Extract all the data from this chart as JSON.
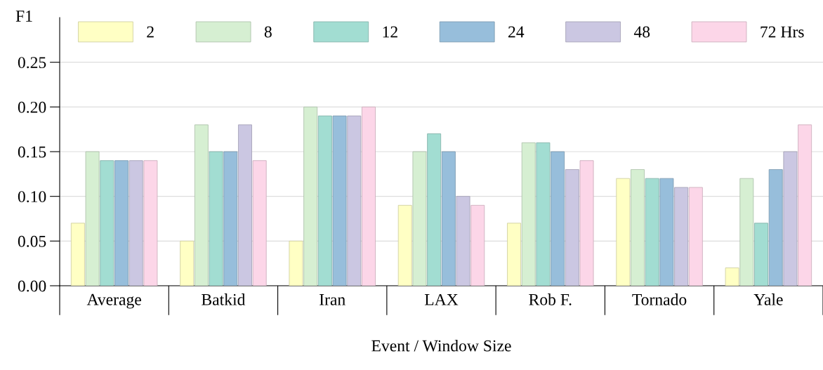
{
  "chart_data": {
    "type": "bar",
    "xlabel": "Event / Window Size",
    "ylabel": "F1",
    "categories": [
      "Average",
      "Batkid",
      "Iran",
      "LAX",
      "Rob F.",
      "Tornado",
      "Yale"
    ],
    "series": [
      {
        "name": "2",
        "color": "#ffffc4",
        "values": [
          0.07,
          0.05,
          0.05,
          0.09,
          0.07,
          0.12,
          0.02
        ]
      },
      {
        "name": "8",
        "color": "#d6efd2",
        "values": [
          0.15,
          0.18,
          0.2,
          0.15,
          0.16,
          0.13,
          0.12
        ]
      },
      {
        "name": "12",
        "color": "#a2ddd2",
        "values": [
          0.14,
          0.15,
          0.19,
          0.17,
          0.16,
          0.12,
          0.07
        ]
      },
      {
        "name": "24",
        "color": "#97bedb",
        "values": [
          0.14,
          0.15,
          0.19,
          0.15,
          0.15,
          0.12,
          0.13
        ]
      },
      {
        "name": "48",
        "color": "#cbc7e2",
        "values": [
          0.14,
          0.18,
          0.19,
          0.1,
          0.13,
          0.11,
          0.15
        ]
      },
      {
        "name": "72 Hrs",
        "color": "#fcd6e8",
        "values": [
          0.14,
          0.14,
          0.2,
          0.09,
          0.14,
          0.11,
          0.18
        ]
      }
    ],
    "ylim": [
      0,
      0.3
    ],
    "yticks": [
      {
        "value": 0,
        "label": "0.00"
      },
      {
        "value": 0.05,
        "label": "0.05"
      },
      {
        "value": 0.1,
        "label": "0.10"
      },
      {
        "value": 0.15,
        "label": "0.15"
      },
      {
        "value": 0.2,
        "label": "0.20"
      },
      {
        "value": 0.25,
        "label": "0.25"
      }
    ],
    "grid": "y",
    "legend": "top"
  }
}
